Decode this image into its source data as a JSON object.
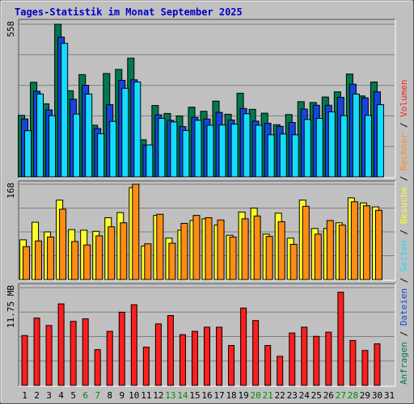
{
  "page_title": "Tages-Statistik im Monat September 2025",
  "colors": {
    "background": "#c0c0c0",
    "title": "#0000c8",
    "border_light": "#ffffff",
    "border_dark": "#505050",
    "grid": "#808080",
    "anfragen": "#007850",
    "dateien": "#1446dc",
    "seiten": "#14dcff",
    "besuche": "#ffff28",
    "rechner": "#ff8c14",
    "volumen": "#ff1e1e",
    "weekend_label": "#008c00",
    "weekday_label": "#000000"
  },
  "chart_data": [
    {
      "type": "bar",
      "panel": "top",
      "ylabel": "558",
      "ylim": [
        0,
        558
      ],
      "categories": [
        "1",
        "2",
        "3",
        "4",
        "5",
        "6",
        "7",
        "8",
        "9",
        "10",
        "11",
        "12",
        "13",
        "14",
        "15",
        "16",
        "17",
        "18",
        "19",
        "20",
        "21",
        "22",
        "23",
        "24",
        "25",
        "26",
        "27",
        "28",
        "29",
        "30",
        "31"
      ],
      "series": [
        {
          "name": "Anfragen",
          "values": [
            225,
            346,
            267,
            558,
            315,
            374,
            189,
            378,
            393,
            434,
            136,
            261,
            232,
            223,
            255,
            240,
            277,
            229,
            306,
            247,
            233,
            191,
            228,
            275,
            272,
            292,
            311,
            376,
            296,
            347,
            0
          ]
        },
        {
          "name": "Dateien",
          "values": [
            212,
            313,
            245,
            511,
            284,
            335,
            177,
            264,
            353,
            355,
            116,
            227,
            207,
            184,
            218,
            212,
            236,
            208,
            250,
            204,
            196,
            185,
            199,
            248,
            262,
            262,
            291,
            339,
            289,
            311,
            0
          ]
        },
        {
          "name": "Seiten",
          "values": [
            169,
            303,
            224,
            488,
            230,
            303,
            158,
            203,
            324,
            347,
            117,
            214,
            201,
            170,
            207,
            189,
            190,
            193,
            231,
            189,
            154,
            157,
            154,
            210,
            214,
            238,
            224,
            303,
            225,
            264,
            0
          ]
        }
      ]
    },
    {
      "type": "bar",
      "panel": "middle",
      "ylabel": "168",
      "ylim": [
        0,
        168
      ],
      "categories": [
        "1",
        "2",
        "3",
        "4",
        "5",
        "6",
        "7",
        "8",
        "9",
        "10",
        "11",
        "12",
        "13",
        "14",
        "15",
        "16",
        "17",
        "18",
        "19",
        "20",
        "21",
        "22",
        "23",
        "24",
        "25",
        "26",
        "27",
        "28",
        "29",
        "30",
        "31"
      ],
      "series": [
        {
          "name": "Besuche",
          "values": [
            70,
            101,
            84,
            140,
            88,
            87,
            85,
            109,
            118,
            162,
            59,
            113,
            73,
            87,
            104,
            107,
            96,
            78,
            119,
            126,
            80,
            117,
            73,
            140,
            90,
            90,
            100,
            144,
            135,
            128,
            0
          ]
        },
        {
          "name": "Rechner",
          "values": [
            58,
            68,
            75,
            124,
            67,
            61,
            77,
            93,
            100,
            168,
            63,
            115,
            64,
            99,
            113,
            109,
            105,
            75,
            107,
            112,
            76,
            102,
            62,
            129,
            80,
            104,
            96,
            137,
            130,
            122,
            0
          ]
        }
      ]
    },
    {
      "type": "bar",
      "panel": "bottom",
      "ylabel": "11.75 MB",
      "ylim": [
        0,
        11.75
      ],
      "categories": [
        "1",
        "2",
        "3",
        "4",
        "5",
        "6",
        "7",
        "8",
        "9",
        "10",
        "11",
        "12",
        "13",
        "14",
        "15",
        "16",
        "17",
        "18",
        "19",
        "20",
        "21",
        "22",
        "23",
        "24",
        "25",
        "26",
        "27",
        "28",
        "29",
        "30",
        "31"
      ],
      "series": [
        {
          "name": "Volumen",
          "values": [
            6.0,
            8.1,
            7.2,
            9.8,
            7.7,
            8.0,
            4.3,
            6.5,
            8.8,
            9.7,
            4.6,
            7.4,
            8.4,
            6.1,
            6.5,
            7.0,
            7.0,
            4.8,
            9.3,
            7.8,
            4.8,
            3.5,
            6.3,
            7.0,
            5.9,
            6.4,
            11.2,
            5.4,
            4.2,
            5.0,
            0
          ]
        }
      ]
    }
  ],
  "x_labels": [
    {
      "label": "1",
      "weekend": false
    },
    {
      "label": "2",
      "weekend": false
    },
    {
      "label": "3",
      "weekend": false
    },
    {
      "label": "4",
      "weekend": false
    },
    {
      "label": "5",
      "weekend": false
    },
    {
      "label": "6",
      "weekend": true
    },
    {
      "label": "7",
      "weekend": true
    },
    {
      "label": "8",
      "weekend": false
    },
    {
      "label": "9",
      "weekend": false
    },
    {
      "label": "10",
      "weekend": false
    },
    {
      "label": "11",
      "weekend": false
    },
    {
      "label": "12",
      "weekend": false
    },
    {
      "label": "13",
      "weekend": true
    },
    {
      "label": "14",
      "weekend": true
    },
    {
      "label": "15",
      "weekend": false
    },
    {
      "label": "16",
      "weekend": false
    },
    {
      "label": "17",
      "weekend": false
    },
    {
      "label": "18",
      "weekend": false
    },
    {
      "label": "19",
      "weekend": false
    },
    {
      "label": "20",
      "weekend": true
    },
    {
      "label": "21",
      "weekend": true
    },
    {
      "label": "22",
      "weekend": false
    },
    {
      "label": "23",
      "weekend": false
    },
    {
      "label": "24",
      "weekend": false
    },
    {
      "label": "25",
      "weekend": false
    },
    {
      "label": "26",
      "weekend": false
    },
    {
      "label": "27",
      "weekend": true
    },
    {
      "label": "28",
      "weekend": true
    },
    {
      "label": "29",
      "weekend": false
    },
    {
      "label": "30",
      "weekend": false
    },
    {
      "label": "31",
      "weekend": false
    }
  ],
  "legend_right": {
    "top": [
      {
        "text": "Anfragen",
        "color": "#007850"
      },
      {
        "text": "/",
        "color": "#000000"
      },
      {
        "text": "Dateien",
        "color": "#1446dc"
      },
      {
        "text": "/",
        "color": "#000000"
      },
      {
        "text": "Seiten",
        "color": "#14dcff"
      },
      {
        "text": "/",
        "color": "#000000"
      },
      {
        "text": "Besuche",
        "color": "#ffff28"
      },
      {
        "text": "/",
        "color": "#000000"
      },
      {
        "text": "Rechner",
        "color": "#ff8c14"
      },
      {
        "text": "/",
        "color": "#000000"
      },
      {
        "text": "Volumen",
        "color": "#ff1e1e"
      }
    ]
  }
}
